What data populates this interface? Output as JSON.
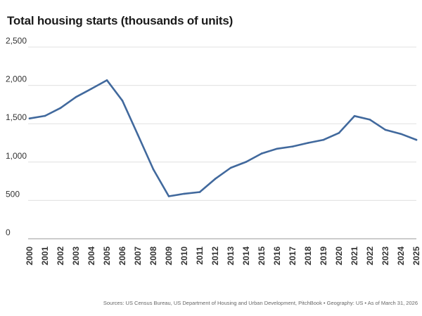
{
  "title": "Total housing starts (thousands of units)",
  "source": "Sources: US Census Bureau, US Department of Housing and Urban Development, PitchBook  •  Geography: US  •  As of March 31, 2026",
  "colors": {
    "line": "#41699d",
    "grid": "#e0e0e0",
    "baseline": "#9a9a9a"
  },
  "chart_data": {
    "type": "line",
    "title": "Total housing starts (thousands of units)",
    "xlabel": "",
    "ylabel": "",
    "x": [
      "2000",
      "2001",
      "2002",
      "2003",
      "2004",
      "2005",
      "2006",
      "2007",
      "2008",
      "2009",
      "2010",
      "2011",
      "2012",
      "2013",
      "2014",
      "2015",
      "2016",
      "2017",
      "2018",
      "2019",
      "2020",
      "2021",
      "2022",
      "2023",
      "2024",
      "2025"
    ],
    "y_ticks": [
      0,
      500,
      1000,
      1500,
      2000,
      2500
    ],
    "y_tick_labels": [
      "0",
      "500",
      "1,000",
      "1,500",
      "2,000",
      "2,500"
    ],
    "ylim": [
      0,
      2500
    ],
    "grid": true,
    "legend": "none",
    "series": [
      {
        "values": [
          1569,
          1603,
          1705,
          1848,
          1956,
          2068,
          1801,
          1355,
          906,
          554,
          587,
          609,
          781,
          925,
          1003,
          1112,
          1174,
          1203,
          1250,
          1290,
          1380,
          1601,
          1553,
          1420,
          1367,
          1290
        ]
      }
    ]
  }
}
